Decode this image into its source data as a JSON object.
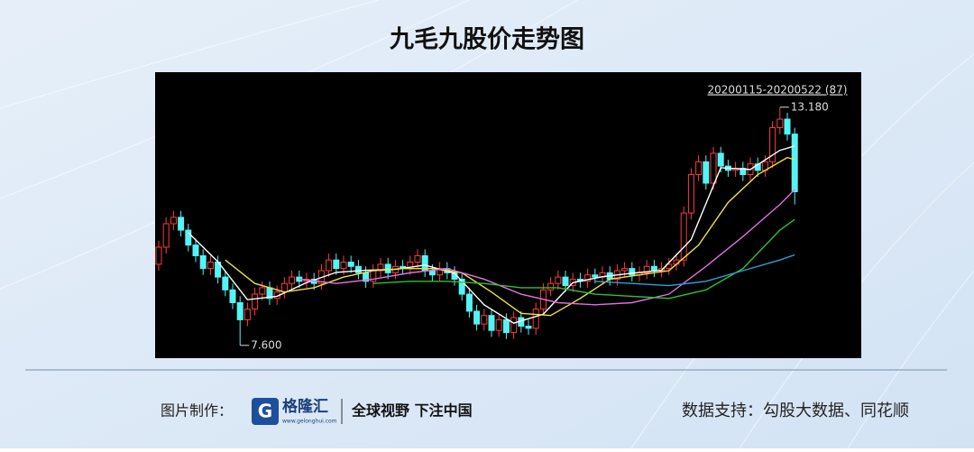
{
  "chart_data": {
    "type": "candlestick",
    "title": "九毛九股价走势图",
    "range_label": "20200115-20200522 (87)",
    "ylim": [
      7.3,
      14.0
    ],
    "up_color": "#ff3b3b",
    "down_color": "#54f4f4",
    "open": [
      9.5,
      9.9,
      10.45,
      10.6,
      10.3,
      9.95,
      9.7,
      9.4,
      9.55,
      9.2,
      8.9,
      8.6,
      8.2,
      8.45,
      8.8,
      8.95,
      8.7,
      8.85,
      9.05,
      9.2,
      9.1,
      9.15,
      9.05,
      9.35,
      9.6,
      9.4,
      9.55,
      9.45,
      9.3,
      9.1,
      9.35,
      9.5,
      9.3,
      9.45,
      9.4,
      9.55,
      9.7,
      9.35,
      9.25,
      9.4,
      9.3,
      9.15,
      8.8,
      8.4,
      8.1,
      8.3,
      7.95,
      8.2,
      7.9,
      8.25,
      8.05,
      8.0,
      8.45,
      8.9,
      9.05,
      9.2,
      9.0,
      9.15,
      9.1,
      9.25,
      9.2,
      9.3,
      9.15,
      9.35,
      9.4,
      9.25,
      9.3,
      9.45,
      9.35,
      9.4,
      9.5,
      9.6,
      10.7,
      11.6,
      11.9,
      11.4,
      12.1,
      11.8,
      11.7,
      11.75,
      11.6,
      11.85,
      11.7,
      11.9,
      12.7,
      12.9,
      12.55
    ],
    "high": [
      10.05,
      10.6,
      10.75,
      10.75,
      10.45,
      10.1,
      9.85,
      9.7,
      9.7,
      9.35,
      9.05,
      8.75,
      8.6,
      8.95,
      9.1,
      9.1,
      9.0,
      9.2,
      9.35,
      9.35,
      9.3,
      9.3,
      9.5,
      9.75,
      9.75,
      9.7,
      9.7,
      9.6,
      9.45,
      9.5,
      9.65,
      9.65,
      9.6,
      9.6,
      9.7,
      9.85,
      9.85,
      9.5,
      9.55,
      9.55,
      9.45,
      9.3,
      8.95,
      8.55,
      8.45,
      8.45,
      8.35,
      8.35,
      8.4,
      8.4,
      8.2,
      8.6,
      9.05,
      9.2,
      9.35,
      9.35,
      9.3,
      9.3,
      9.4,
      9.4,
      9.45,
      9.45,
      9.5,
      9.55,
      9.55,
      9.45,
      9.6,
      9.6,
      9.55,
      9.65,
      9.75,
      10.85,
      11.75,
      12.05,
      12.05,
      12.25,
      12.25,
      11.95,
      11.9,
      11.9,
      12.0,
      12.0,
      12.05,
      12.85,
      13.18,
      13.05,
      12.7
    ],
    "low": [
      9.35,
      9.75,
      10.3,
      10.15,
      9.8,
      9.55,
      9.25,
      9.25,
      9.05,
      8.75,
      8.45,
      7.6,
      8.05,
      8.3,
      8.65,
      8.55,
      8.55,
      8.7,
      8.9,
      8.95,
      8.95,
      8.9,
      8.9,
      9.2,
      9.25,
      9.25,
      9.3,
      9.15,
      8.95,
      8.95,
      9.2,
      9.15,
      9.15,
      9.25,
      9.25,
      9.4,
      9.2,
      9.1,
      9.1,
      9.15,
      9.0,
      8.65,
      8.25,
      7.95,
      7.95,
      7.8,
      7.8,
      7.75,
      7.75,
      7.9,
      7.85,
      7.85,
      8.3,
      8.75,
      8.9,
      8.85,
      8.85,
      8.95,
      8.95,
      9.05,
      9.05,
      9.0,
      9.0,
      9.2,
      9.1,
      9.1,
      9.15,
      9.2,
      9.2,
      9.25,
      9.35,
      9.45,
      10.55,
      11.45,
      11.25,
      11.25,
      11.65,
      11.55,
      11.55,
      11.45,
      11.45,
      11.55,
      11.55,
      11.75,
      12.55,
      12.4,
      10.9
    ],
    "close": [
      9.9,
      10.45,
      10.6,
      10.3,
      9.95,
      9.7,
      9.4,
      9.55,
      9.2,
      8.9,
      8.6,
      8.2,
      8.45,
      8.8,
      8.95,
      8.7,
      8.85,
      9.05,
      9.2,
      9.1,
      9.15,
      9.05,
      9.35,
      9.6,
      9.4,
      9.55,
      9.45,
      9.3,
      9.1,
      9.35,
      9.5,
      9.3,
      9.45,
      9.4,
      9.55,
      9.7,
      9.35,
      9.25,
      9.4,
      9.3,
      9.15,
      8.8,
      8.4,
      8.1,
      8.3,
      7.95,
      8.2,
      7.9,
      8.25,
      8.05,
      8.0,
      8.45,
      8.9,
      9.05,
      9.2,
      9.0,
      9.15,
      9.1,
      9.25,
      9.2,
      9.3,
      9.15,
      9.35,
      9.4,
      9.25,
      9.3,
      9.45,
      9.35,
      9.4,
      9.5,
      9.6,
      10.7,
      11.6,
      11.9,
      11.4,
      12.1,
      11.8,
      11.7,
      11.75,
      11.6,
      11.85,
      11.7,
      11.9,
      12.7,
      12.9,
      12.55,
      11.2
    ],
    "lines": [
      {
        "color": "#ffffff",
        "x": [
          4,
          8,
          12,
          16,
          20,
          24,
          28,
          32,
          36,
          40,
          44,
          48,
          52,
          56,
          60,
          64,
          68,
          72,
          76,
          80,
          84,
          86
        ],
        "values": [
          10.24,
          9.56,
          8.67,
          8.75,
          9.07,
          9.31,
          9.36,
          9.38,
          9.48,
          9.29,
          8.55,
          8.12,
          8.33,
          9.07,
          9.21,
          9.29,
          9.36,
          10.08,
          11.76,
          11.72,
          12.17,
          12.27
        ]
      },
      {
        "color": "#f0e040",
        "x": [
          9,
          13,
          17,
          21,
          25,
          29,
          33,
          37,
          41,
          45,
          49,
          53,
          57,
          61,
          65,
          69,
          73,
          77,
          81,
          85,
          86
        ],
        "values": [
          9.6,
          9.05,
          8.85,
          8.95,
          9.2,
          9.35,
          9.4,
          9.4,
          9.3,
          8.85,
          8.35,
          8.3,
          8.7,
          9.15,
          9.25,
          9.35,
          9.95,
          10.95,
          11.6,
          12.0,
          11.95
        ]
      },
      {
        "color": "#e070e0",
        "x": [
          19,
          24,
          29,
          34,
          39,
          44,
          49,
          54,
          59,
          64,
          69,
          74,
          79,
          84,
          86
        ],
        "values": [
          9.15,
          9.05,
          9.15,
          9.3,
          9.4,
          9.15,
          8.8,
          8.6,
          8.55,
          8.6,
          8.8,
          9.45,
          10.15,
          10.9,
          11.25
        ]
      },
      {
        "color": "#30c030",
        "x": [
          29,
          34,
          39,
          44,
          49,
          54,
          59,
          64,
          69,
          74,
          79,
          84,
          86
        ],
        "values": [
          9.05,
          9.1,
          9.1,
          9.05,
          8.95,
          8.95,
          8.8,
          8.75,
          8.7,
          8.9,
          9.4,
          10.3,
          10.55
        ]
      },
      {
        "color": "#2aa0e0",
        "x": [
          59,
          64,
          69,
          74,
          79,
          84,
          86
        ],
        "values": [
          9.1,
          9.05,
          9.0,
          9.1,
          9.35,
          9.6,
          9.72
        ]
      }
    ],
    "annotations": [
      {
        "index": 84,
        "value": 13.18,
        "label": "13.180"
      },
      {
        "index": 11,
        "value": 7.6,
        "label": "7.600"
      }
    ]
  },
  "footer": {
    "maker_label": "图片制作：",
    "logo": "格隆汇",
    "logo_url": "www.gelonghui.com",
    "slogan": "全球视野 下注中国",
    "source": "数据支持：勾股大数据、同花顺"
  }
}
